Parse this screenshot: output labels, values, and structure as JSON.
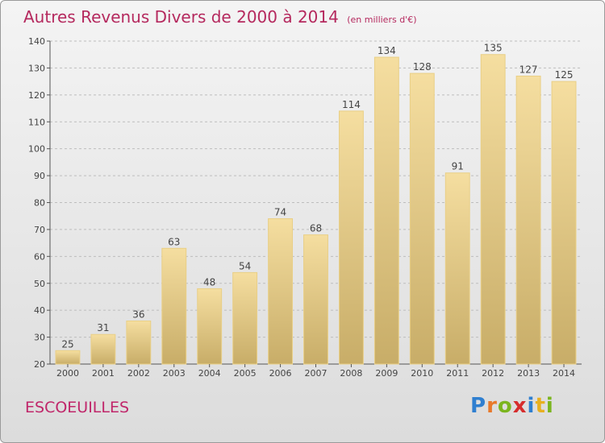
{
  "title": {
    "main": "Autres Revenus Divers de 2000 à 2014",
    "unit": "(en milliers d'€)"
  },
  "commune": "ESCOEUILLES",
  "logo": {
    "letters": [
      {
        "char": "P",
        "color": "#2f7fd0"
      },
      {
        "char": "r",
        "color": "#e8792b"
      },
      {
        "char": "o",
        "color": "#7bb51f"
      },
      {
        "char": "x",
        "color": "#d62d2d"
      },
      {
        "char": "i",
        "color": "#2f7fd0"
      },
      {
        "char": "t",
        "color": "#e8b020"
      },
      {
        "char": "i",
        "color": "#7bb51f"
      }
    ]
  },
  "chart_data": {
    "type": "bar",
    "categories": [
      "2000",
      "2001",
      "2002",
      "2003",
      "2004",
      "2005",
      "2006",
      "2007",
      "2008",
      "2009",
      "2010",
      "2011",
      "2012",
      "2013",
      "2014"
    ],
    "values": [
      25,
      31,
      36,
      63,
      48,
      54,
      74,
      68,
      114,
      134,
      128,
      91,
      135,
      127,
      125
    ],
    "ylim": [
      20,
      140
    ],
    "yticks": [
      20,
      30,
      40,
      50,
      60,
      70,
      80,
      90,
      100,
      110,
      120,
      130,
      140
    ],
    "grid": true,
    "bar_color_light": "#f5dea0",
    "bar_color_dark": "#c8ad68",
    "label_color": "#444444",
    "axis_color": "#555555"
  }
}
